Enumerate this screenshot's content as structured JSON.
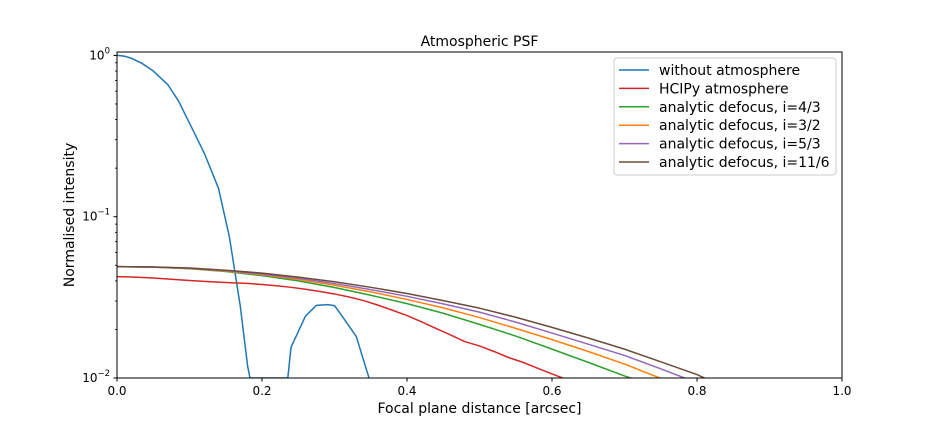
{
  "chart_data": {
    "type": "line",
    "title": "Atmospheric PSF",
    "xlabel": "Focal plane distance [arcsec]",
    "ylabel": "Normalised intensity",
    "xlim": [
      0,
      1.0
    ],
    "ylim": [
      0.01,
      1.05
    ],
    "yscale": "log",
    "grid": false,
    "legend_position": "top-right",
    "x_ticks": [
      {
        "value": 0.0,
        "label": "0.0"
      },
      {
        "value": 0.2,
        "label": "0.2"
      },
      {
        "value": 0.4,
        "label": "0.4"
      },
      {
        "value": 0.6,
        "label": "0.6"
      },
      {
        "value": 0.8,
        "label": "0.8"
      },
      {
        "value": 1.0,
        "label": "1.0"
      }
    ],
    "y_ticks": [
      {
        "value": 0.01,
        "base": "10",
        "exp": "−2"
      },
      {
        "value": 0.1,
        "base": "10",
        "exp": "−1"
      },
      {
        "value": 1.0,
        "base": "10",
        "exp": "0"
      }
    ],
    "series": [
      {
        "name": "without atmosphere",
        "color": "#1f77b4",
        "x": [
          0.0,
          0.01,
          0.02,
          0.035,
          0.05,
          0.07,
          0.085,
          0.1,
          0.12,
          0.14,
          0.155,
          0.17,
          0.18,
          0.1834,
          0.2356,
          0.24,
          0.26,
          0.275,
          0.29,
          0.3,
          0.31,
          0.33,
          0.3476
        ],
        "y": [
          1.0,
          0.99,
          0.96,
          0.89,
          0.8,
          0.66,
          0.52,
          0.38,
          0.25,
          0.15,
          0.075,
          0.028,
          0.012,
          0.01,
          0.01,
          0.0155,
          0.0242,
          0.0282,
          0.0285,
          0.0281,
          0.0244,
          0.0181,
          0.01
        ]
      },
      {
        "name": "HCIPy atmosphere",
        "color": "#d62728",
        "x": [
          0.0,
          0.02,
          0.04,
          0.06,
          0.08,
          0.1,
          0.12,
          0.14,
          0.16,
          0.18,
          0.2,
          0.22,
          0.24,
          0.26,
          0.28,
          0.3,
          0.32,
          0.34,
          0.36,
          0.38,
          0.4,
          0.42,
          0.44,
          0.46,
          0.48,
          0.5,
          0.52,
          0.54,
          0.56,
          0.58,
          0.6,
          0.62,
          0.6358
        ],
        "y": [
          0.0425,
          0.0423,
          0.0419,
          0.0414,
          0.0408,
          0.0402,
          0.0397,
          0.0393,
          0.0389,
          0.0386,
          0.038,
          0.0373,
          0.0365,
          0.0355,
          0.0344,
          0.0332,
          0.0318,
          0.0302,
          0.0283,
          0.0263,
          0.0244,
          0.0223,
          0.0203,
          0.0185,
          0.0168,
          0.0158,
          0.0146,
          0.0134,
          0.0125,
          0.0115,
          0.0106,
          0.0098,
          0.0093
        ]
      },
      {
        "name": "analytic defocus, i=4/3",
        "color": "#2ca02c",
        "x": [
          0.0,
          0.05,
          0.1,
          0.15,
          0.2,
          0.25,
          0.3,
          0.35,
          0.4,
          0.45,
          0.5,
          0.55,
          0.6,
          0.65,
          0.7,
          0.7323
        ],
        "y": [
          0.049,
          0.0487,
          0.0476,
          0.0457,
          0.0431,
          0.04,
          0.0364,
          0.0326,
          0.0289,
          0.0252,
          0.0215,
          0.0182,
          0.0151,
          0.0125,
          0.0103,
          0.0092
        ]
      },
      {
        "name": "analytic defocus, i=3/2",
        "color": "#ff7f0e",
        "x": [
          0.0,
          0.05,
          0.1,
          0.15,
          0.2,
          0.25,
          0.3,
          0.35,
          0.4,
          0.45,
          0.5,
          0.55,
          0.6,
          0.65,
          0.7,
          0.7613
        ],
        "y": [
          0.049,
          0.0487,
          0.0477,
          0.046,
          0.0437,
          0.0409,
          0.0376,
          0.0342,
          0.0307,
          0.0272,
          0.0237,
          0.0203,
          0.0173,
          0.0146,
          0.0122,
          0.0095
        ]
      },
      {
        "name": "analytic defocus, i=5/3",
        "color": "#9467bd",
        "x": [
          0.0,
          0.05,
          0.1,
          0.15,
          0.2,
          0.25,
          0.3,
          0.35,
          0.4,
          0.45,
          0.5,
          0.55,
          0.6,
          0.65,
          0.7,
          0.75,
          0.7855
        ],
        "y": [
          0.049,
          0.0488,
          0.0479,
          0.0463,
          0.0441,
          0.0415,
          0.0385,
          0.0353,
          0.0321,
          0.0288,
          0.0256,
          0.0222,
          0.019,
          0.0162,
          0.0138,
          0.0114,
          0.0099
        ]
      },
      {
        "name": "analytic defocus, i=11/6",
        "color": "#6b4c3b",
        "x": [
          0.0,
          0.05,
          0.1,
          0.15,
          0.2,
          0.25,
          0.3,
          0.35,
          0.4,
          0.45,
          0.5,
          0.55,
          0.6,
          0.65,
          0.7,
          0.75,
          0.8,
          0.8145
        ],
        "y": [
          0.049,
          0.0488,
          0.0481,
          0.0466,
          0.0447,
          0.0422,
          0.0395,
          0.0365,
          0.0334,
          0.0302,
          0.0271,
          0.0238,
          0.0206,
          0.0177,
          0.0151,
          0.0126,
          0.0105,
          0.0098
        ]
      }
    ]
  }
}
